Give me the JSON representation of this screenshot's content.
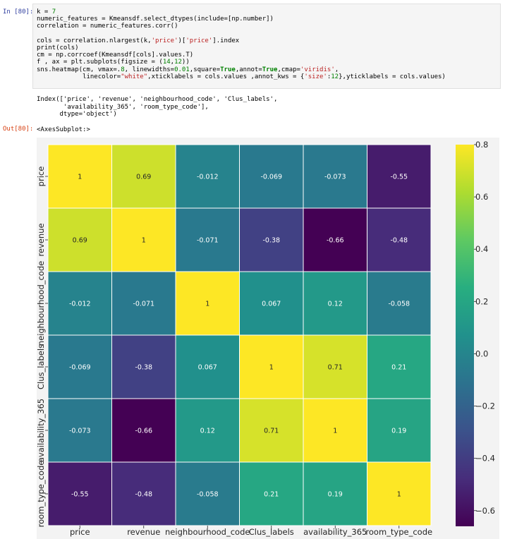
{
  "cell_in": {
    "prompt": "In [80]:",
    "code_lines": [
      "k = 7",
      "numeric_features = Kmeansdf.select_dtypes(include=[np.number])",
      "correlation = numeric_features.corr()",
      "",
      "cols = correlation.nlargest(k,'price')['price'].index",
      "print(cols)",
      "cm = np.corrcoef(Kmeansdf[cols].values.T)",
      "f , ax = plt.subplots(figsize = (14,12))",
      "sns.heatmap(cm, vmax=.8, linewidths=0.01,square=True,annot=True,cmap='viridis',",
      "            linecolor=\"white\",xticklabels = cols.values ,annot_kws = {'size':12},yticklabels = cols.values)"
    ]
  },
  "stream_output": {
    "lines": [
      "Index(['price', 'revenue', 'neighbourhood_code', 'Clus_labels',",
      "       'availability_365', 'room_type_code'],",
      "      dtype='object')"
    ]
  },
  "cell_out": {
    "prompt": "Out[80]:",
    "repr": "<AxesSubplot:>"
  },
  "chart_data": {
    "type": "heatmap",
    "cmap": "viridis",
    "vmax": 0.8,
    "vmin": -0.66,
    "x_tick_labels": [
      "price",
      "revenue",
      "neighbourhood_code",
      "Clus_labels",
      "availability_365",
      "room_type_code"
    ],
    "y_tick_labels": [
      "price",
      "revenue",
      "neighbourhood_code",
      "Clus_labels",
      "availability_365",
      "room_type_code"
    ],
    "values": [
      [
        1,
        0.69,
        -0.012,
        -0.069,
        -0.073,
        -0.55
      ],
      [
        0.69,
        1,
        -0.071,
        -0.38,
        -0.66,
        -0.48
      ],
      [
        -0.012,
        -0.071,
        1,
        0.067,
        0.12,
        -0.058
      ],
      [
        -0.069,
        -0.38,
        0.067,
        1,
        0.71,
        0.21
      ],
      [
        -0.073,
        -0.66,
        0.12,
        0.71,
        1,
        0.19
      ],
      [
        -0.55,
        -0.48,
        -0.058,
        0.21,
        0.19,
        1
      ]
    ],
    "annotations": [
      [
        "1",
        "0.69",
        "-0.012",
        "-0.069",
        "-0.073",
        "-0.55"
      ],
      [
        "0.69",
        "1",
        "-0.071",
        "-0.38",
        "-0.66",
        "-0.48"
      ],
      [
        "-0.012",
        "-0.071",
        "1",
        "0.067",
        "0.12",
        "-0.058"
      ],
      [
        "-0.069",
        "-0.38",
        "0.067",
        "1",
        "0.71",
        "0.21"
      ],
      [
        "-0.073",
        "-0.66",
        "0.12",
        "0.71",
        "1",
        "0.19"
      ],
      [
        "-0.55",
        "-0.48",
        "-0.058",
        "0.21",
        "0.19",
        "1"
      ]
    ],
    "colorbar_ticks": [
      0.8,
      0.6,
      0.4,
      0.2,
      0.0,
      -0.2,
      -0.4,
      -0.6
    ],
    "colorbar_tick_labels": [
      "0.8",
      "0.6",
      "0.4",
      "0.2",
      "0.0",
      "−0.2",
      "−0.4",
      "−0.6"
    ]
  }
}
